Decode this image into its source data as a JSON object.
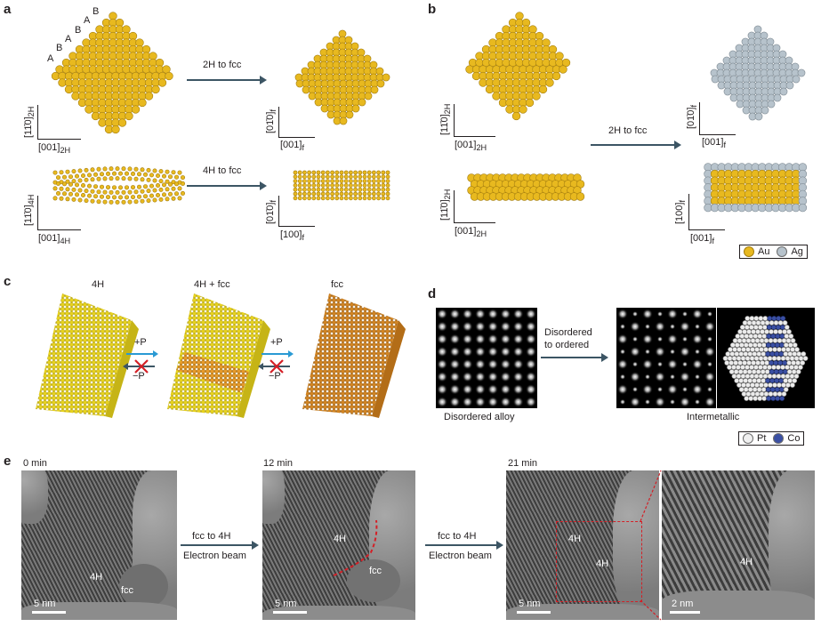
{
  "colors": {
    "gold": "#e8b91f",
    "gold_edge": "#a47e10",
    "silver": "#b7c3cc",
    "silver_edge": "#7f8b94",
    "arrow": "#3c5564",
    "orange": "#e79a2a",
    "blue": "#3a4fa3",
    "red": "#d41f26",
    "pt": "#ececec"
  },
  "panel_labels": {
    "a": "a",
    "b": "b",
    "c": "c",
    "d": "d",
    "e": "e"
  },
  "panel_a": {
    "stack_labels": [
      "A",
      "B",
      "A",
      "B",
      "A",
      "B"
    ],
    "arrow1": "2H to fcc",
    "arrow2": "4H to fcc",
    "ax1_v": "[11̄0]",
    "ax1_v_sub": "2H",
    "ax1_h": "[001]",
    "ax1_h_sub": "2H",
    "ax2_v": "[01̄0]",
    "ax2_v_sub": "f",
    "ax2_h": "[001]",
    "ax2_h_sub": "f",
    "ax3_v": "[11̄0]",
    "ax3_v_sub": "4H",
    "ax3_h": "[001]",
    "ax3_h_sub": "4H",
    "ax4_v": "[01̄0]",
    "ax4_v_sub": "f",
    "ax4_h": "[100]",
    "ax4_h_sub": "f"
  },
  "panel_b": {
    "arrow": "2H to fcc",
    "ax1_v": "[11̄0]",
    "ax1_v_sub": "2H",
    "ax1_h": "[001]",
    "ax1_h_sub": "2H",
    "ax2_v": "[11̄0]",
    "ax2_v_sub": "2H",
    "ax2_h": "[001]",
    "ax2_h_sub": "2H",
    "ax3_v": "[01̄0]",
    "ax3_v_sub": "f",
    "ax3_h": "[001]",
    "ax3_h_sub": "f",
    "ax4_v": "[100]",
    "ax4_v_sub": "f",
    "ax4_h": "[001]",
    "ax4_h_sub": "f",
    "legend": [
      "Au",
      "Ag"
    ]
  },
  "panel_c": {
    "titles": [
      "4H",
      "4H + fcc",
      "fcc"
    ],
    "plus_p": "+P",
    "minus_p": "−P"
  },
  "panel_d": {
    "arrow": [
      "Disordered",
      "to ordered"
    ],
    "left_caption": "Disordered alloy",
    "right_caption": "Intermetallic",
    "legend": [
      "Pt",
      "Co"
    ]
  },
  "panel_e": {
    "times": [
      "0 min",
      "12 min",
      "21 min"
    ],
    "arrow": [
      "fcc to 4H",
      "Electron beam"
    ],
    "labels_4h": "4H",
    "labels_fcc": "fcc",
    "scale_5nm": "5 nm",
    "scale_2nm": "2 nm"
  }
}
